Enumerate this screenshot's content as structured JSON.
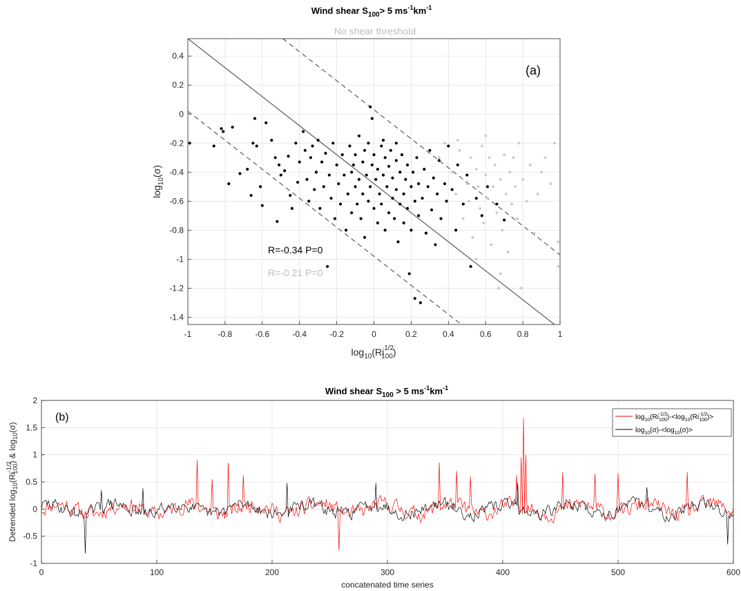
{
  "chart_data": [
    {
      "type": "scatter",
      "panel_label": "(a)",
      "title_main": "Wind shear S",
      "title_sub": "100",
      "title_tail": "> 5 ms",
      "title_sup1": "-1",
      "title_km": "km",
      "title_sup2": "-1",
      "subtitle": "No shear threshold",
      "xlabel": "log",
      "xlabel_sub": "10",
      "xlabel_ri": "(Ri",
      "xlabel_sup": "1/2",
      "xlabel_sub2": "100",
      "xlabel_close": ")",
      "ylabel": "log",
      "ylabel_sub": "10",
      "ylabel_sigma": "(σ)",
      "xlim": [
        -1,
        1
      ],
      "ylim": [
        -1.5,
        0.5
      ],
      "xticks": [
        "-1",
        "-0.8",
        "-0.6",
        "-0.4",
        "-0.2",
        "0",
        "0.2",
        "0.4",
        "0.6",
        "0.8",
        "1"
      ],
      "yticks": [
        "0.4",
        "0.2",
        "0",
        "-0.2",
        "-0.4",
        "-0.6",
        "-0.8",
        "-1",
        "-1.2",
        "-1.4"
      ],
      "grid": true,
      "fit_line": {
        "slope": -1.0,
        "intercept": -0.48
      },
      "bounds": [
        {
          "slope": -1.0,
          "intercept": -0.98
        },
        {
          "slope": -1.0,
          "intercept": 0.03
        }
      ],
      "annotations": [
        {
          "text": "R=-0.34   P=0",
          "color": "#000000"
        },
        {
          "text": "R=-0.21   P=0",
          "color": "#bdbdbd"
        }
      ],
      "colors": {
        "shear": "#000000",
        "no_shear": "#c8c8c8",
        "line": "#5a5a5a"
      },
      "series": [
        {
          "name": "Wind shear S100 > 5 ms-1km-1",
          "points": [
            [
              -0.99,
              -0.2
            ],
            [
              -0.86,
              -0.22
            ],
            [
              -0.82,
              -0.1
            ],
            [
              -0.81,
              -0.12
            ],
            [
              -0.78,
              -0.48
            ],
            [
              -0.76,
              -0.09
            ],
            [
              -0.72,
              -0.41
            ],
            [
              -0.68,
              -0.38
            ],
            [
              -0.66,
              -0.56
            ],
            [
              -0.65,
              -0.2
            ],
            [
              -0.64,
              -0.03
            ],
            [
              -0.63,
              -0.22
            ],
            [
              -0.61,
              -0.5
            ],
            [
              -0.6,
              -0.63
            ],
            [
              -0.58,
              -0.06
            ],
            [
              -0.55,
              -0.18
            ],
            [
              -0.53,
              -0.3
            ],
            [
              -0.52,
              -0.74
            ],
            [
              -0.51,
              -0.35
            ],
            [
              -0.5,
              -0.42
            ],
            [
              -0.48,
              -0.39
            ],
            [
              -0.46,
              -0.29
            ],
            [
              -0.45,
              -0.56
            ],
            [
              -0.44,
              -0.65
            ],
            [
              -0.42,
              -0.2
            ],
            [
              -0.41,
              -0.47
            ],
            [
              -0.4,
              -0.33
            ],
            [
              -0.38,
              -0.12
            ],
            [
              -0.37,
              -0.25
            ],
            [
              -0.36,
              -0.45
            ],
            [
              -0.35,
              -0.6
            ],
            [
              -0.34,
              -0.3
            ],
            [
              -0.33,
              -0.22
            ],
            [
              -0.32,
              -0.52
            ],
            [
              -0.31,
              -0.4
            ],
            [
              -0.3,
              -0.18
            ],
            [
              -0.29,
              -0.65
            ],
            [
              -0.28,
              -0.33
            ],
            [
              -0.27,
              -0.5
            ],
            [
              -0.26,
              -0.27
            ],
            [
              -0.25,
              -1.05
            ],
            [
              -0.24,
              -0.42
            ],
            [
              -0.23,
              -0.58
            ],
            [
              -0.22,
              -0.2
            ],
            [
              -0.21,
              -0.72
            ],
            [
              -0.2,
              -0.35
            ],
            [
              -0.19,
              -0.48
            ],
            [
              -0.18,
              -0.62
            ],
            [
              -0.17,
              -0.28
            ],
            [
              -0.16,
              -0.42
            ],
            [
              -0.15,
              -0.8
            ],
            [
              -0.14,
              -0.55
            ],
            [
              -0.13,
              -0.22
            ],
            [
              -0.12,
              -0.4
            ],
            [
              -0.12,
              -0.68
            ],
            [
              -0.11,
              -0.35
            ],
            [
              -0.1,
              -0.5
            ],
            [
              -0.1,
              -0.28
            ],
            [
              -0.09,
              -0.62
            ],
            [
              -0.08,
              -0.45
            ],
            [
              -0.08,
              -0.15
            ],
            [
              -0.07,
              -0.72
            ],
            [
              -0.06,
              -0.33
            ],
            [
              -0.06,
              -0.55
            ],
            [
              -0.05,
              -0.25
            ],
            [
              -0.05,
              -0.85
            ],
            [
              -0.04,
              -0.42
            ],
            [
              -0.03,
              -0.6
            ],
            [
              -0.03,
              -0.2
            ],
            [
              -0.02,
              -0.5
            ],
            [
              -0.01,
              -0.35
            ],
            [
              0.0,
              -0.65
            ],
            [
              0.0,
              -0.28
            ],
            [
              0.01,
              -0.45
            ],
            [
              0.02,
              -0.75
            ],
            [
              0.02,
              -0.38
            ],
            [
              0.03,
              -0.55
            ],
            [
              0.04,
              -0.22
            ],
            [
              0.04,
              -0.62
            ],
            [
              0.05,
              -0.42
            ],
            [
              0.06,
              -0.3
            ],
            [
              0.06,
              -0.8
            ],
            [
              0.07,
              -0.5
            ],
            [
              0.08,
              -0.36
            ],
            [
              0.08,
              -0.68
            ],
            [
              0.09,
              -0.25
            ],
            [
              0.1,
              -0.58
            ],
            [
              0.1,
              -0.44
            ],
            [
              0.11,
              -0.72
            ],
            [
              0.12,
              -0.32
            ],
            [
              0.12,
              -0.52
            ],
            [
              0.13,
              -0.88
            ],
            [
              0.14,
              -0.4
            ],
            [
              0.14,
              -0.62
            ],
            [
              0.15,
              -0.28
            ],
            [
              0.16,
              -0.55
            ],
            [
              0.16,
              -0.75
            ],
            [
              0.17,
              -0.45
            ],
            [
              0.18,
              -0.35
            ],
            [
              0.18,
              -0.65
            ],
            [
              0.19,
              -1.1
            ],
            [
              0.2,
              -0.5
            ],
            [
              0.2,
              -0.8
            ],
            [
              0.21,
              -0.4
            ],
            [
              0.22,
              -1.27
            ],
            [
              0.22,
              -0.6
            ],
            [
              0.23,
              -0.3
            ],
            [
              0.24,
              -0.7
            ],
            [
              0.24,
              -0.48
            ],
            [
              0.25,
              -1.3
            ],
            [
              0.26,
              -0.58
            ],
            [
              0.27,
              -0.38
            ],
            [
              0.28,
              -0.82
            ],
            [
              0.29,
              -0.5
            ],
            [
              0.3,
              -0.25
            ],
            [
              0.31,
              -0.66
            ],
            [
              0.32,
              -0.44
            ],
            [
              0.33,
              -0.9
            ],
            [
              0.34,
              -0.55
            ],
            [
              0.35,
              -0.32
            ],
            [
              0.36,
              -0.72
            ],
            [
              0.38,
              -0.48
            ],
            [
              0.39,
              -0.6
            ],
            [
              0.4,
              -0.22
            ],
            [
              0.42,
              -0.52
            ],
            [
              0.44,
              -0.8
            ],
            [
              0.45,
              -0.35
            ],
            [
              0.48,
              -0.62
            ],
            [
              0.5,
              -0.42
            ],
            [
              0.52,
              -1.05
            ],
            [
              0.55,
              -0.58
            ],
            [
              0.58,
              -0.7
            ],
            [
              0.61,
              -0.5
            ],
            [
              0.66,
              -0.62
            ],
            [
              0.7,
              -0.73
            ],
            [
              -0.02,
              0.05
            ],
            [
              -0.01,
              -0.03
            ],
            [
              0.12,
              -0.2
            ],
            [
              0.05,
              -0.18
            ]
          ]
        },
        {
          "name": "No shear threshold",
          "points": [
            [
              0.35,
              -0.3
            ],
            [
              0.38,
              -0.2
            ],
            [
              0.42,
              -0.4
            ],
            [
              0.44,
              -0.55
            ],
            [
              0.46,
              -0.25
            ],
            [
              0.48,
              -0.72
            ],
            [
              0.5,
              -0.48
            ],
            [
              0.51,
              -0.6
            ],
            [
              0.52,
              -0.3
            ],
            [
              0.53,
              -0.85
            ],
            [
              0.55,
              -0.38
            ],
            [
              0.56,
              -0.5
            ],
            [
              0.57,
              -0.65
            ],
            [
              0.58,
              -0.22
            ],
            [
              0.59,
              -0.75
            ],
            [
              0.6,
              -0.42
            ],
            [
              0.61,
              -0.58
            ],
            [
              0.62,
              -0.3
            ],
            [
              0.63,
              -0.9
            ],
            [
              0.64,
              -0.5
            ],
            [
              0.65,
              -0.35
            ],
            [
              0.66,
              -0.68
            ],
            [
              0.67,
              -1.2
            ],
            [
              0.68,
              -0.45
            ],
            [
              0.69,
              -0.8
            ],
            [
              0.7,
              -0.28
            ],
            [
              0.71,
              -0.55
            ],
            [
              0.72,
              -0.95
            ],
            [
              0.73,
              -0.4
            ],
            [
              0.74,
              -0.62
            ],
            [
              0.75,
              -0.3
            ],
            [
              0.76,
              -0.5
            ],
            [
              0.77,
              -0.72
            ],
            [
              0.78,
              -0.2
            ],
            [
              0.79,
              -1.2
            ],
            [
              0.8,
              -0.45
            ],
            [
              0.82,
              -0.6
            ],
            [
              0.84,
              -0.35
            ],
            [
              0.86,
              -0.82
            ],
            [
              0.88,
              -0.55
            ],
            [
              0.9,
              -0.4
            ],
            [
              0.92,
              -0.3
            ],
            [
              0.95,
              -0.48
            ],
            [
              0.97,
              -0.2
            ],
            [
              0.99,
              -1.05
            ],
            [
              0.99,
              -0.88
            ],
            [
              0.6,
              -0.15
            ],
            [
              0.45,
              -0.18
            ],
            [
              0.68,
              -1.1
            ],
            [
              0.55,
              -1.0
            ]
          ]
        }
      ]
    },
    {
      "type": "line",
      "panel_label": "(b)",
      "title_main": "Wind shear S",
      "title_sub": "100",
      "title_tail": " > 5 ms",
      "title_sup1": "-1",
      "title_km": "km",
      "title_sup2": "-1",
      "xlabel": "concatenated time series",
      "ylabel": "Detrended log",
      "ylabel_sub": "10",
      "ylabel_ri": "(Ri",
      "ylabel_sup": "-1/2",
      "ylabel_sub2": "100",
      "ylabel_tail": ") & log",
      "ylabel_sub3": "10",
      "ylabel_sigma": "(σ)",
      "xlim": [
        0,
        600
      ],
      "ylim": [
        -1,
        2
      ],
      "xticks": [
        "0",
        "100",
        "200",
        "300",
        "400",
        "500",
        "600"
      ],
      "yticks": [
        "2",
        "1.5",
        "1",
        "0.5",
        "0",
        "-0.5",
        "-1"
      ],
      "grid": true,
      "legend_position": "top-right",
      "legend": [
        {
          "pre": "log",
          "s1": "10",
          "t1": "(Ri",
          "sup1": "-1/2",
          "s2": "100",
          "t2": ")-<log",
          "s3": "10",
          "t3": "(Ri",
          "sup2": "-1/2",
          "s4": "100",
          "t4": ")>",
          "color": "#ff0000"
        },
        {
          "pre": "log",
          "s1": "10",
          "t1": "(σ)-<log",
          "s3": "10",
          "t3": "(σ)>",
          "color": "#000000"
        }
      ],
      "series": [
        {
          "name": "log10(Ri100^-1/2)-<log10(Ri100^-1/2)>",
          "color": "#ff0000",
          "amplitude": 0.22,
          "seed": 11,
          "spikes": [
            [
              135,
              0.9
            ],
            [
              148,
              0.55
            ],
            [
              162,
              0.85
            ],
            [
              175,
              0.62
            ],
            [
              345,
              0.86
            ],
            [
              360,
              0.7
            ],
            [
              372,
              0.6
            ],
            [
              412,
              0.62
            ],
            [
              416,
              0.95
            ],
            [
              418,
              1.68
            ],
            [
              420,
              1.0
            ],
            [
              452,
              0.68
            ],
            [
              480,
              0.65
            ],
            [
              500,
              0.66
            ],
            [
              560,
              0.68
            ],
            [
              258,
              -0.77
            ]
          ]
        },
        {
          "name": "log10(σ)-<log10(σ)>",
          "color": "#000000",
          "amplitude": 0.18,
          "seed": 29,
          "spikes": [
            [
              38,
              -0.82
            ],
            [
              52,
              0.35
            ],
            [
              88,
              0.38
            ],
            [
              213,
              0.48
            ],
            [
              290,
              0.48
            ],
            [
              413,
              0.48
            ],
            [
              525,
              0.4
            ],
            [
              595,
              -0.65
            ]
          ]
        }
      ]
    }
  ]
}
